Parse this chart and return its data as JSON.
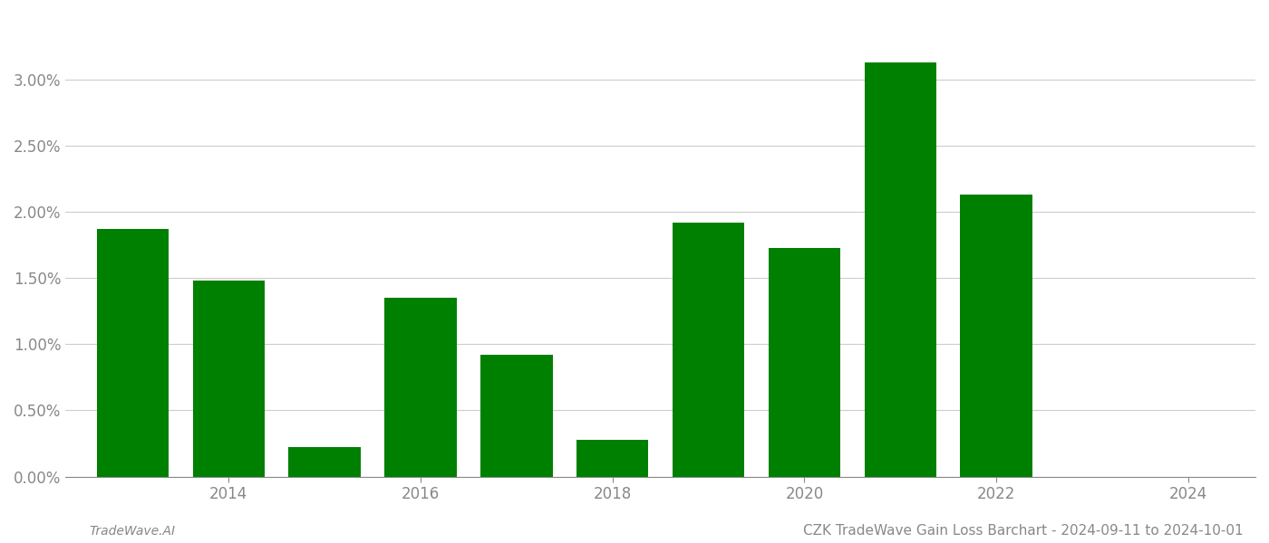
{
  "years": [
    2013,
    2014,
    2015,
    2016,
    2017,
    2018,
    2019,
    2020,
    2021,
    2022,
    2023
  ],
  "values": [
    0.0187,
    0.0148,
    0.0022,
    0.0135,
    0.0092,
    0.0028,
    0.0192,
    0.0173,
    0.0313,
    0.0213,
    0.0
  ],
  "bar_color": "#008000",
  "background_color": "#ffffff",
  "grid_color": "#cccccc",
  "title": "CZK TradeWave Gain Loss Barchart - 2024-09-11 to 2024-10-01",
  "footer_left": "TradeWave.AI",
  "ylim": [
    0,
    0.035
  ],
  "ytick_values": [
    0.0,
    0.005,
    0.01,
    0.015,
    0.02,
    0.025,
    0.03
  ],
  "xtick_values": [
    2014,
    2016,
    2018,
    2020,
    2022,
    2024
  ],
  "title_fontsize": 11,
  "footer_fontsize": 10,
  "tick_fontsize": 12,
  "tick_color": "#888888",
  "bar_width": 0.75
}
